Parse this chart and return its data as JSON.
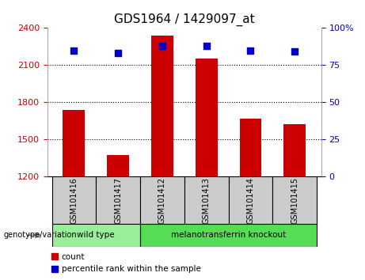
{
  "title": "GDS1964 / 1429097_at",
  "samples": [
    "GSM101416",
    "GSM101417",
    "GSM101412",
    "GSM101413",
    "GSM101414",
    "GSM101415"
  ],
  "counts": [
    1740,
    1370,
    2340,
    2150,
    1670,
    1620
  ],
  "percentile_ranks": [
    85,
    83,
    88,
    88,
    85,
    84
  ],
  "ylim_left": [
    1200,
    2400
  ],
  "ylim_right": [
    0,
    100
  ],
  "yticks_left": [
    1200,
    1500,
    1800,
    2100,
    2400
  ],
  "yticks_right": [
    0,
    25,
    50,
    75,
    100
  ],
  "bar_color": "#cc0000",
  "dot_color": "#0000cc",
  "bar_width": 0.5,
  "groups": [
    {
      "label": "wild type",
      "indices": [
        0,
        1
      ],
      "color": "#99ee99"
    },
    {
      "label": "melanotransferrin knockout",
      "indices": [
        2,
        3,
        4,
        5
      ],
      "color": "#55dd55"
    }
  ],
  "group_label": "genotype/variation",
  "legend_count_label": "count",
  "legend_pct_label": "percentile rank within the sample",
  "tick_label_color_left": "#cc0000",
  "tick_label_color_right": "#0000cc",
  "grid_linestyle": "dotted",
  "sample_bg_color": "#cccccc",
  "fig_bg_color": "#ffffff"
}
